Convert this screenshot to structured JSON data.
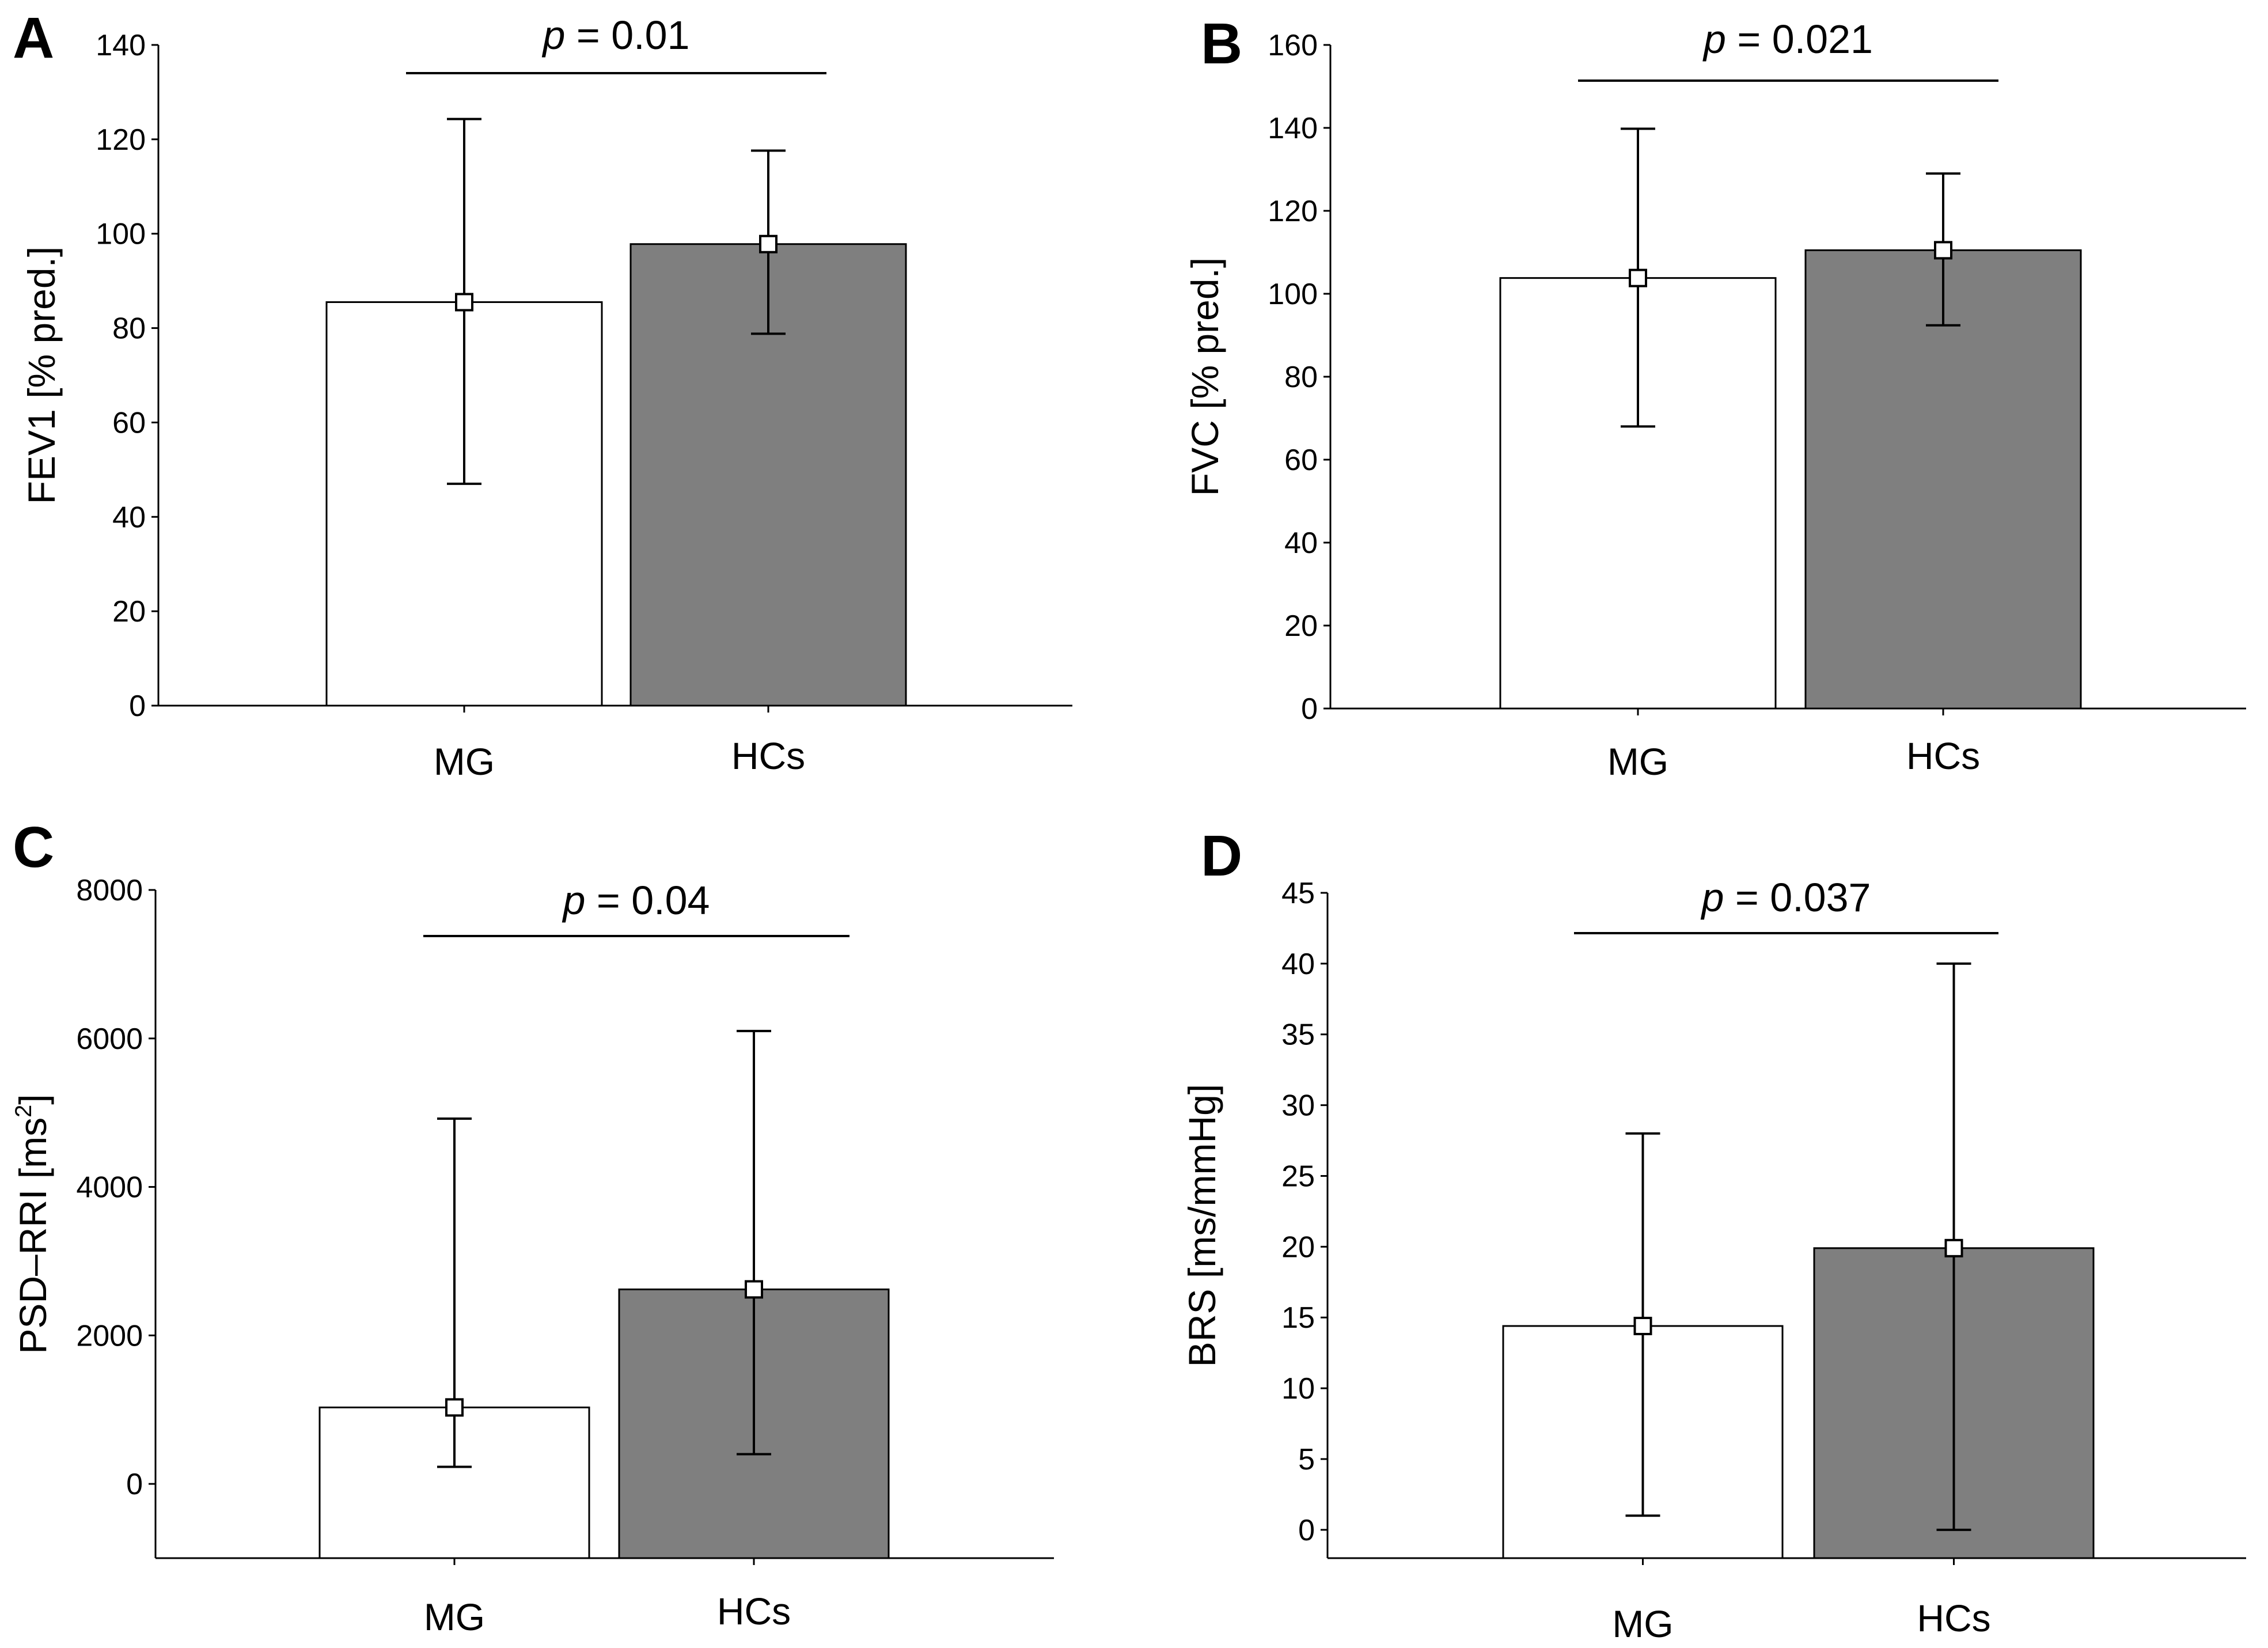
{
  "chart_data": [
    {
      "type": "bar",
      "panel": "A",
      "ylabel": "FEV1 [% pred.]",
      "ylabel_sup": "",
      "ylabel_tail": "",
      "ylim": [
        0,
        140
      ],
      "yticks": [
        0,
        20,
        40,
        60,
        80,
        100,
        120,
        140
      ],
      "categories": [
        "MG",
        "HCs"
      ],
      "values": [
        85.5,
        97.8
      ],
      "err_low": [
        47,
        78.8
      ],
      "err_high": [
        124.3,
        117.6
      ],
      "bar_colors": [
        "#ffffff",
        "#7f7f7f"
      ],
      "p_prefix": "p",
      "p_text": " = 0.01"
    },
    {
      "type": "bar",
      "panel": "B",
      "ylabel": "FVC [% pred.]",
      "ylabel_sup": "",
      "ylabel_tail": "",
      "ylim": [
        0,
        160
      ],
      "yticks": [
        0,
        20,
        40,
        60,
        80,
        100,
        120,
        140,
        160
      ],
      "categories": [
        "MG",
        "HCs"
      ],
      "values": [
        103.8,
        110.5
      ],
      "err_low": [
        68,
        92.4
      ],
      "err_high": [
        139.8,
        129
      ],
      "bar_colors": [
        "#ffffff",
        "#7f7f7f"
      ],
      "p_prefix": "p",
      "p_text": " = 0.021"
    },
    {
      "type": "bar",
      "panel": "C",
      "ylabel": "PSD–RRI [ms",
      "ylabel_sup": "2",
      "ylabel_tail": "]",
      "ylim": [
        -1000,
        8000
      ],
      "yticks": [
        0,
        2000,
        4000,
        6000,
        8000
      ],
      "categories": [
        "MG",
        "HCs"
      ],
      "values": [
        1030,
        2620
      ],
      "err_low": [
        230,
        400
      ],
      "err_high": [
        4920,
        6100
      ],
      "bar_colors": [
        "#ffffff",
        "#7f7f7f"
      ],
      "p_prefix": "p",
      "p_text": " = 0.04"
    },
    {
      "type": "bar",
      "panel": "D",
      "ylabel": "BRS [ms/mmHg]",
      "ylabel_sup": "",
      "ylabel_tail": "",
      "ylim": [
        -2,
        45
      ],
      "yticks": [
        0,
        5,
        10,
        15,
        20,
        25,
        30,
        35,
        40,
        45
      ],
      "categories": [
        "MG",
        "HCs"
      ],
      "values": [
        14.4,
        19.9
      ],
      "err_low": [
        1,
        0
      ],
      "err_high": [
        28,
        40
      ],
      "bar_colors": [
        "#ffffff",
        "#7f7f7f"
      ],
      "p_prefix": "p",
      "p_text": " = 0.037"
    }
  ]
}
